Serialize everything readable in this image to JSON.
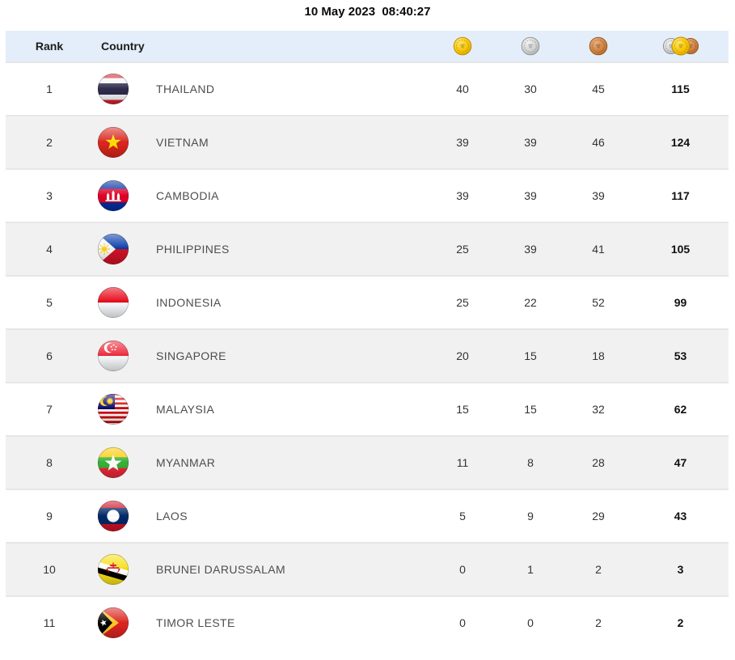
{
  "page": {
    "title": "10 May 2023  08:40:27"
  },
  "table": {
    "columns": {
      "rank_label": "Rank",
      "country_label": "Country",
      "gold_icon": "gold-medal",
      "silver_icon": "silver-medal",
      "bronze_icon": "bronze-medal",
      "total_icon": "all-medals"
    },
    "rows": [
      {
        "rank": "1",
        "country": "THAILAND",
        "flag": "thailand",
        "gold": "40",
        "silver": "30",
        "bronze": "45",
        "total": "115"
      },
      {
        "rank": "2",
        "country": "VIETNAM",
        "flag": "vietnam",
        "gold": "39",
        "silver": "39",
        "bronze": "46",
        "total": "124"
      },
      {
        "rank": "3",
        "country": "CAMBODIA",
        "flag": "cambodia",
        "gold": "39",
        "silver": "39",
        "bronze": "39",
        "total": "117"
      },
      {
        "rank": "4",
        "country": "PHILIPPINES",
        "flag": "philippines",
        "gold": "25",
        "silver": "39",
        "bronze": "41",
        "total": "105"
      },
      {
        "rank": "5",
        "country": "INDONESIA",
        "flag": "indonesia",
        "gold": "25",
        "silver": "22",
        "bronze": "52",
        "total": "99"
      },
      {
        "rank": "6",
        "country": "SINGAPORE",
        "flag": "singapore",
        "gold": "20",
        "silver": "15",
        "bronze": "18",
        "total": "53"
      },
      {
        "rank": "7",
        "country": "MALAYSIA",
        "flag": "malaysia",
        "gold": "15",
        "silver": "15",
        "bronze": "32",
        "total": "62"
      },
      {
        "rank": "8",
        "country": "MYANMAR",
        "flag": "myanmar",
        "gold": "11",
        "silver": "8",
        "bronze": "28",
        "total": "47"
      },
      {
        "rank": "9",
        "country": "LAOS",
        "flag": "laos",
        "gold": "5",
        "silver": "9",
        "bronze": "29",
        "total": "43"
      },
      {
        "rank": "10",
        "country": "BRUNEI DARUSSALAM",
        "flag": "brunei",
        "gold": "0",
        "silver": "1",
        "bronze": "2",
        "total": "3"
      },
      {
        "rank": "11",
        "country": "TIMOR LESTE",
        "flag": "timor-leste",
        "gold": "0",
        "silver": "0",
        "bronze": "2",
        "total": "2"
      }
    ]
  },
  "colors": {
    "header_bg": "#e4eefa",
    "row_alt_bg": "#f1f1f1",
    "row_border": "#e6e6e6",
    "gold": "#f6c400",
    "silver": "#cfcfcf",
    "bronze": "#cd8140",
    "text": "#333333",
    "country_text": "#4d4d4d"
  }
}
